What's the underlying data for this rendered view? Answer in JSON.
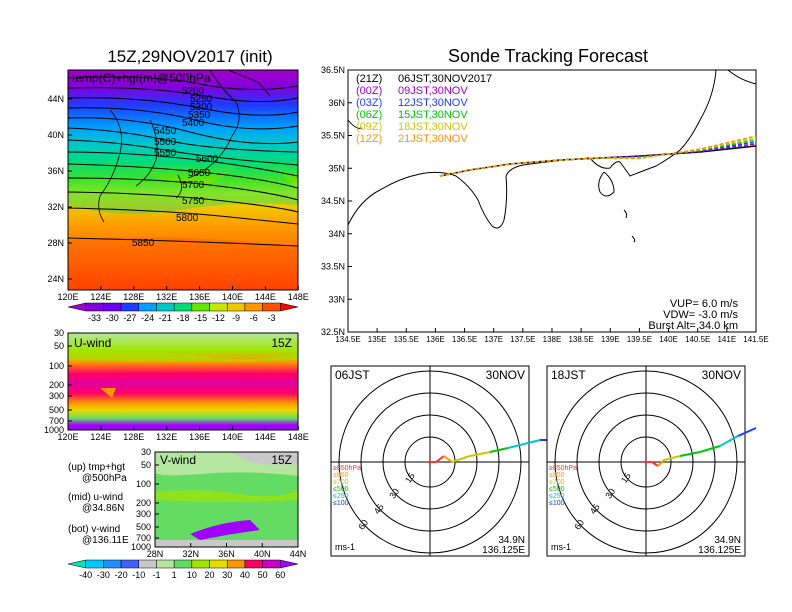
{
  "left_title": "15Z,29NOV2017 (init)",
  "right_title": "Sonde Tracking Forecast",
  "top_panel": {
    "label": "temp(C)+hgt(m)@500hPa",
    "lat_ticks": [
      "44N",
      "40N",
      "36N",
      "32N",
      "28N",
      "24N"
    ],
    "lon_ticks": [
      "120E",
      "124E",
      "128E",
      "132E",
      "136E",
      "140E",
      "144E",
      "148E"
    ],
    "contours": [
      "5200",
      "5250",
      "5300",
      "5350",
      "5400",
      "5450",
      "5500",
      "5550",
      "5600",
      "5650",
      "5700",
      "5750",
      "5800",
      "5850"
    ]
  },
  "temp_colorbar": {
    "labels": [
      "-33",
      "-30",
      "-27",
      "-24",
      "-21",
      "-18",
      "-15",
      "-12",
      "-9",
      "-6",
      "-3"
    ],
    "colors": [
      "#a000c8",
      "#8200dc",
      "#6e00f0",
      "#1e3cff",
      "#00a0ff",
      "#00c8c8",
      "#00dc78",
      "#64e600",
      "#c8e600",
      "#f0c800",
      "#ff9600",
      "#ff5000",
      "#ff0000"
    ]
  },
  "uwind_panel": {
    "label": "U-wind",
    "time": "15Z",
    "p_ticks": [
      "30",
      "50",
      "100",
      "200",
      "300",
      "500",
      "700",
      "1000"
    ],
    "lon_ticks": [
      "120E",
      "124E",
      "128E",
      "132E",
      "136E",
      "140E",
      "144E",
      "148E"
    ]
  },
  "vwind_panel": {
    "label": "V-wind",
    "time": "15Z",
    "p_ticks": [
      "30",
      "50",
      "100",
      "200",
      "300",
      "500",
      "700",
      "1000"
    ],
    "lat_ticks": [
      "28N",
      "32N",
      "36N",
      "40N",
      "44N"
    ]
  },
  "legend_text": {
    "up1": "(up) tmp+hgt",
    "up2": "@500hPa",
    "mid1": "(mid) u-wind",
    "mid2": "@34.86N",
    "bot1": "(bot) v-wind",
    "bot2": "@136.11E"
  },
  "wind_colorbar": {
    "labels": [
      "-40",
      "-30",
      "-20",
      "-10",
      "-1",
      "1",
      "10",
      "20",
      "30",
      "40",
      "50",
      "60"
    ],
    "colors": [
      "#00e6b4",
      "#00c8ff",
      "#1e90ff",
      "#4060ff",
      "#c8c8c8",
      "#b4e6a0",
      "#64dc64",
      "#a0e600",
      "#e6dc00",
      "#ff9600",
      "#ff0064",
      "#c800c8",
      "#a000ff"
    ]
  },
  "track_map": {
    "lat_ticks": [
      "36.5N",
      "36N",
      "35.5N",
      "35N",
      "34.5N",
      "34N",
      "33.5N",
      "33N",
      "32.5N"
    ],
    "lon_ticks": [
      "134.5E",
      "135E",
      "135.5E",
      "136E",
      "136.5E",
      "137E",
      "137.5E",
      "138E",
      "138.5E",
      "139E",
      "139.5E",
      "140E",
      "140.5E",
      "141E",
      "141.5E"
    ],
    "legend": [
      {
        "code": "(21Z)",
        "time": "06JST,30NOV2017",
        "color": "#000000"
      },
      {
        "code": "(00Z)",
        "time": "09JST,30NOV",
        "color": "#a000c8"
      },
      {
        "code": "(03Z)",
        "time": "12JST,30NOV",
        "color": "#1e3cff"
      },
      {
        "code": "(06Z)",
        "time": "15JST,30NOV",
        "color": "#00c800"
      },
      {
        "code": "(09Z)",
        "time": "18JST,30NOV",
        "color": "#c8c800"
      },
      {
        "code": "(12Z)",
        "time": "21JST,30NOV",
        "color": "#ff9600"
      }
    ],
    "info": [
      "VUP=  6.0  m/s",
      "VDW= -3.0  m/s",
      "Burst Alt=  34.0  km"
    ]
  },
  "hodographs": [
    {
      "time": "06JST",
      "date": "30NOV",
      "lat": "34.9N",
      "lon": "136.125E",
      "unit": "ms-1"
    },
    {
      "time": "18JST",
      "date": "30NOV",
      "lat": "34.9N",
      "lon": "136.125E",
      "unit": "ms-1"
    }
  ],
  "hodo_rings": [
    "15",
    "30",
    "45",
    "60"
  ],
  "hodo_levels": [
    {
      "label": "≥850hPa",
      "color": "#ff3030"
    },
    {
      "label": "≤850",
      "color": "#ff9600"
    },
    {
      "label": "≤700",
      "color": "#c8c800"
    },
    {
      "label": "≤500",
      "color": "#00c800"
    },
    {
      "label": "≤250",
      "color": "#00c8c8"
    },
    {
      "label": "≤100",
      "color": "#1e3cff"
    }
  ]
}
